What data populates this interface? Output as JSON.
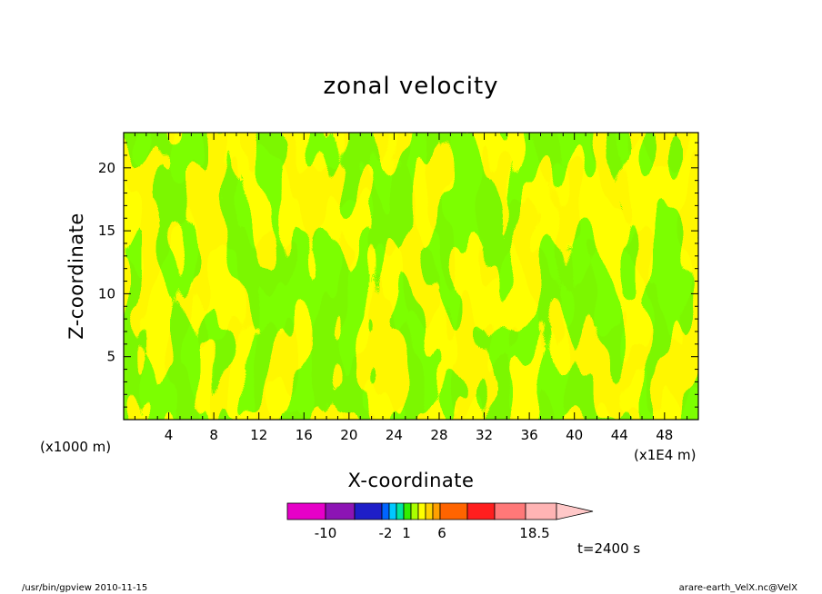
{
  "chart_data": {
    "type": "heatmap",
    "title": "zonal velocity",
    "xlabel": "X-coordinate",
    "ylabel": "Z-coordinate",
    "x_unit": "(x1E4 m)",
    "y_unit": "(x1000 m)",
    "xticks": [
      "4",
      "8",
      "12",
      "16",
      "20",
      "24",
      "28",
      "32",
      "36",
      "40",
      "44",
      "48"
    ],
    "yticks": [
      "5",
      "10",
      "15",
      "20"
    ],
    "xlim": [
      0,
      51
    ],
    "ylim": [
      0,
      22.8
    ],
    "fill_colors": {
      "negative": "#33ee00",
      "positive": "#ffff00"
    },
    "colorbar": {
      "colors": [
        "#e600c8",
        "#8c14b4",
        "#1e1ec8",
        "#0064ff",
        "#00c8ff",
        "#00e6a0",
        "#33ee00",
        "#aaff00",
        "#ffff00",
        "#ffd200",
        "#ffa000",
        "#ff6400",
        "#ff1e1e",
        "#ff7878",
        "#ffb4b4"
      ],
      "extend_color": "#ffc8c8",
      "labels": [
        "-10",
        "-2",
        "1",
        "6",
        "18.5"
      ],
      "label_positions": [
        -10,
        -2,
        1,
        6,
        18.5
      ]
    },
    "time_label": "t=2400 s"
  },
  "footer": {
    "left": "/usr/bin/gpview   2010-11-15",
    "right": "arare-earth_VelX.nc@VelX"
  }
}
